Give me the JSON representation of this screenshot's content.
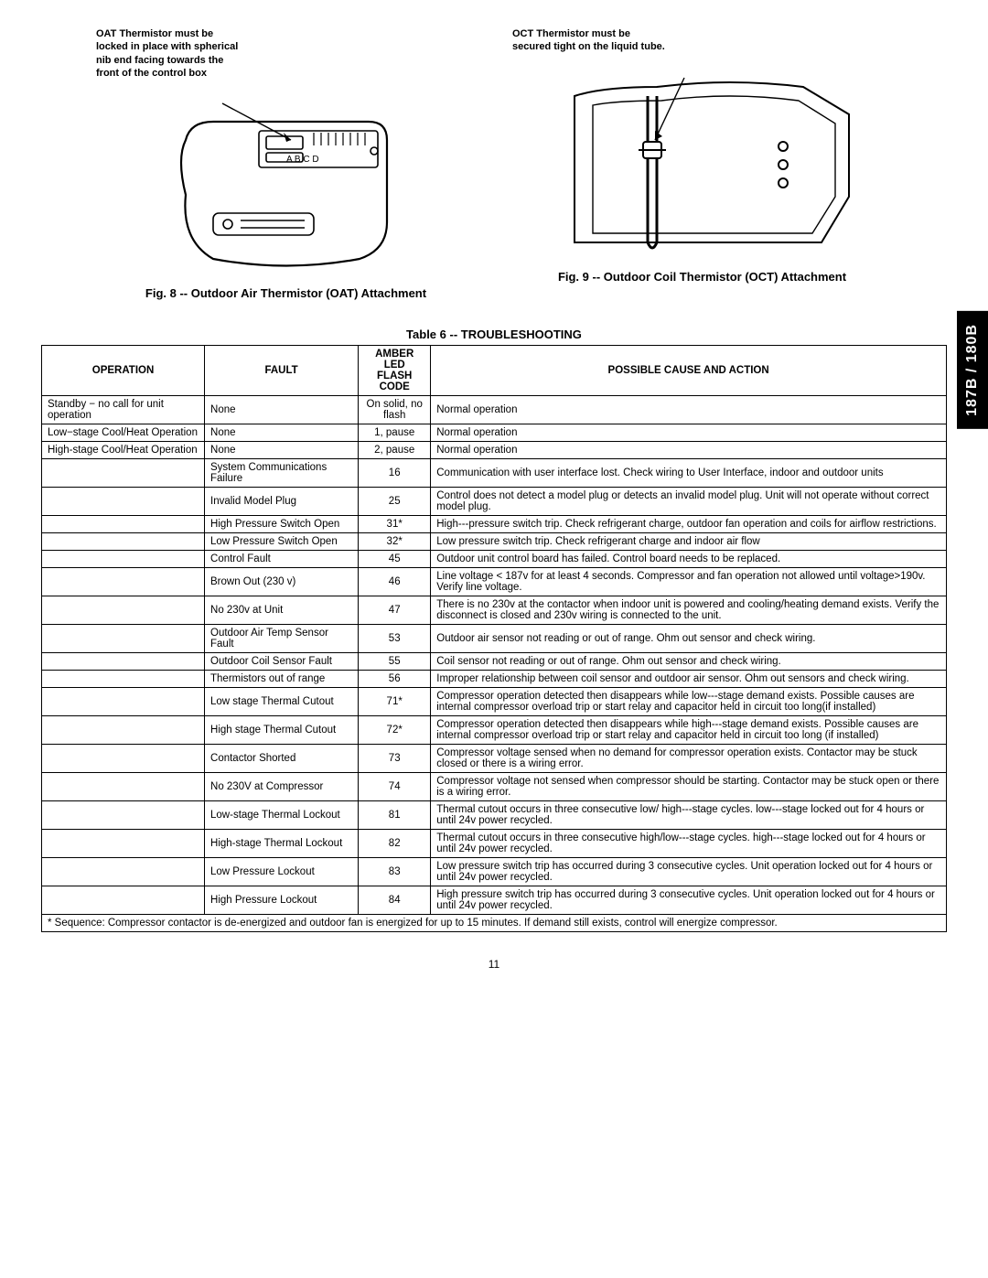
{
  "side_tab": "187B / 180B",
  "page_number": "11",
  "fig8": {
    "note": "OAT Thermistor must be\nlocked in place with spherical\nnib end facing towards the\nfront of the control box",
    "note_lines": [
      "OAT Thermistor must be",
      "locked in place with spherical",
      "nib end facing towards the",
      "front of the control box"
    ],
    "caption": "Fig. 8 -- Outdoor Air Thermistor (OAT) Attachment",
    "board_label": "A B C D"
  },
  "fig9": {
    "note": "OCT Thermistor must be\nsecured tight on the liquid tube.",
    "note_lines": [
      "OCT Thermistor must be",
      "secured tight on the liquid tube."
    ],
    "caption": "Fig. 9 -- Outdoor Coil Thermistor (OCT) Attachment"
  },
  "table": {
    "title": "Table 6 -- TROUBLESHOOTING",
    "headers": {
      "operation": "OPERATION",
      "fault": "FAULT",
      "code": "AMBER\nLED\nFLASH\nCODE",
      "code_lines": [
        "AMBER",
        "LED",
        "FLASH",
        "CODE"
      ],
      "action": "POSSIBLE CAUSE AND ACTION"
    },
    "rows": [
      {
        "operation": "Standby − no call for unit operation",
        "fault": "None",
        "code": "On solid, no flash",
        "action": "Normal operation"
      },
      {
        "operation": "Low−stage Cool/Heat Operation",
        "fault": "None",
        "code": "1, pause",
        "action": "Normal operation"
      },
      {
        "operation": "High-stage Cool/Heat Operation",
        "fault": "None",
        "code": "2, pause",
        "action": "Normal operation"
      },
      {
        "operation": "",
        "fault": "System Communications Failure",
        "code": "16",
        "action": "Communication with user interface lost. Check wiring to User Interface, indoor and outdoor units"
      },
      {
        "operation": "",
        "fault": "Invalid Model Plug",
        "code": "25",
        "action": "Control does not detect a model plug or detects an invalid model plug. Unit will not operate without correct model plug."
      },
      {
        "operation": "",
        "fault": "High Pressure Switch Open",
        "code": "31*",
        "action": "High---pressure switch trip. Check refrigerant charge, outdoor fan operation and coils for airflow restrictions."
      },
      {
        "operation": "",
        "fault": "Low Pressure Switch Open",
        "code": "32*",
        "action": "Low pressure switch trip. Check refrigerant charge and indoor air flow"
      },
      {
        "operation": "",
        "fault": "Control Fault",
        "code": "45",
        "action": "Outdoor unit control board has failed. Control board needs to be replaced."
      },
      {
        "operation": "",
        "fault": "Brown Out (230 v)",
        "code": "46",
        "action": "Line voltage < 187v for at least 4 seconds. Compressor and fan operation not allowed until voltage>190v. Verify line voltage."
      },
      {
        "operation": "",
        "fault": "No 230v at Unit",
        "code": "47",
        "action": "There is no 230v at the contactor when indoor unit is powered and cooling/heating demand exists. Verify the disconnect is closed and 230v wiring is connected to the unit."
      },
      {
        "operation": "",
        "fault": "Outdoor Air Temp Sensor Fault",
        "code": "53",
        "action": "Outdoor air sensor not reading or out of range. Ohm out sensor and check wiring."
      },
      {
        "operation": "",
        "fault": "Outdoor Coil Sensor Fault",
        "code": "55",
        "action": "Coil sensor not reading or out of range. Ohm out sensor and check wiring."
      },
      {
        "operation": "",
        "fault": "Thermistors out of range",
        "code": "56",
        "action": "Improper relationship between coil sensor and outdoor air sensor. Ohm out sensors and check wiring."
      },
      {
        "operation": "",
        "fault": "Low stage Thermal Cutout",
        "code": "71*",
        "action": "Compressor operation detected then disappears while low---stage demand exists. Possible causes are internal compressor overload trip or start relay and capacitor held in circuit too long(if installed)"
      },
      {
        "operation": "",
        "fault": "High stage Thermal Cutout",
        "code": "72*",
        "action": "Compressor operation detected then disappears while high---stage demand exists. Possible causes are internal compressor overload trip or start relay and capacitor held in circuit too long (if installed)"
      },
      {
        "operation": "",
        "fault": "Contactor Shorted",
        "code": "73",
        "action": "Compressor voltage sensed when no demand for compressor operation exists. Contactor may be stuck closed or there is a wiring error."
      },
      {
        "operation": "",
        "fault": "No 230V at Compressor",
        "code": "74",
        "action": "Compressor voltage not sensed when compressor should be starting. Contactor may be stuck open or there is a wiring error."
      },
      {
        "operation": "",
        "fault": "Low-stage Thermal Lockout",
        "code": "81",
        "action": "Thermal cutout occurs in three consecutive low/ high---stage cycles. low---stage locked out for 4 hours or until 24v power recycled."
      },
      {
        "operation": "",
        "fault": "High-stage Thermal Lockout",
        "code": "82",
        "action": "Thermal cutout occurs in three consecutive high/low---stage cycles. high---stage locked out for 4 hours or until 24v power recycled."
      },
      {
        "operation": "",
        "fault": "Low Pressure Lockout",
        "code": "83",
        "action": "Low pressure switch trip has occurred during 3 consecutive cycles. Unit operation locked out for 4 hours or until 24v power recycled."
      },
      {
        "operation": "",
        "fault": "High Pressure Lockout",
        "code": "84",
        "action": "High pressure switch trip has occurred during 3 consecutive cycles. Unit operation locked out for 4 hours or until 24v power recycled."
      }
    ],
    "footnote": "* Sequence: Compressor contactor is de-energized and outdoor fan is energized for up to 15 minutes. If demand still exists, control will energize compressor.",
    "col_widths": {
      "operation": "18%",
      "fault": "17%",
      "code": "8%",
      "action": "57%"
    }
  }
}
